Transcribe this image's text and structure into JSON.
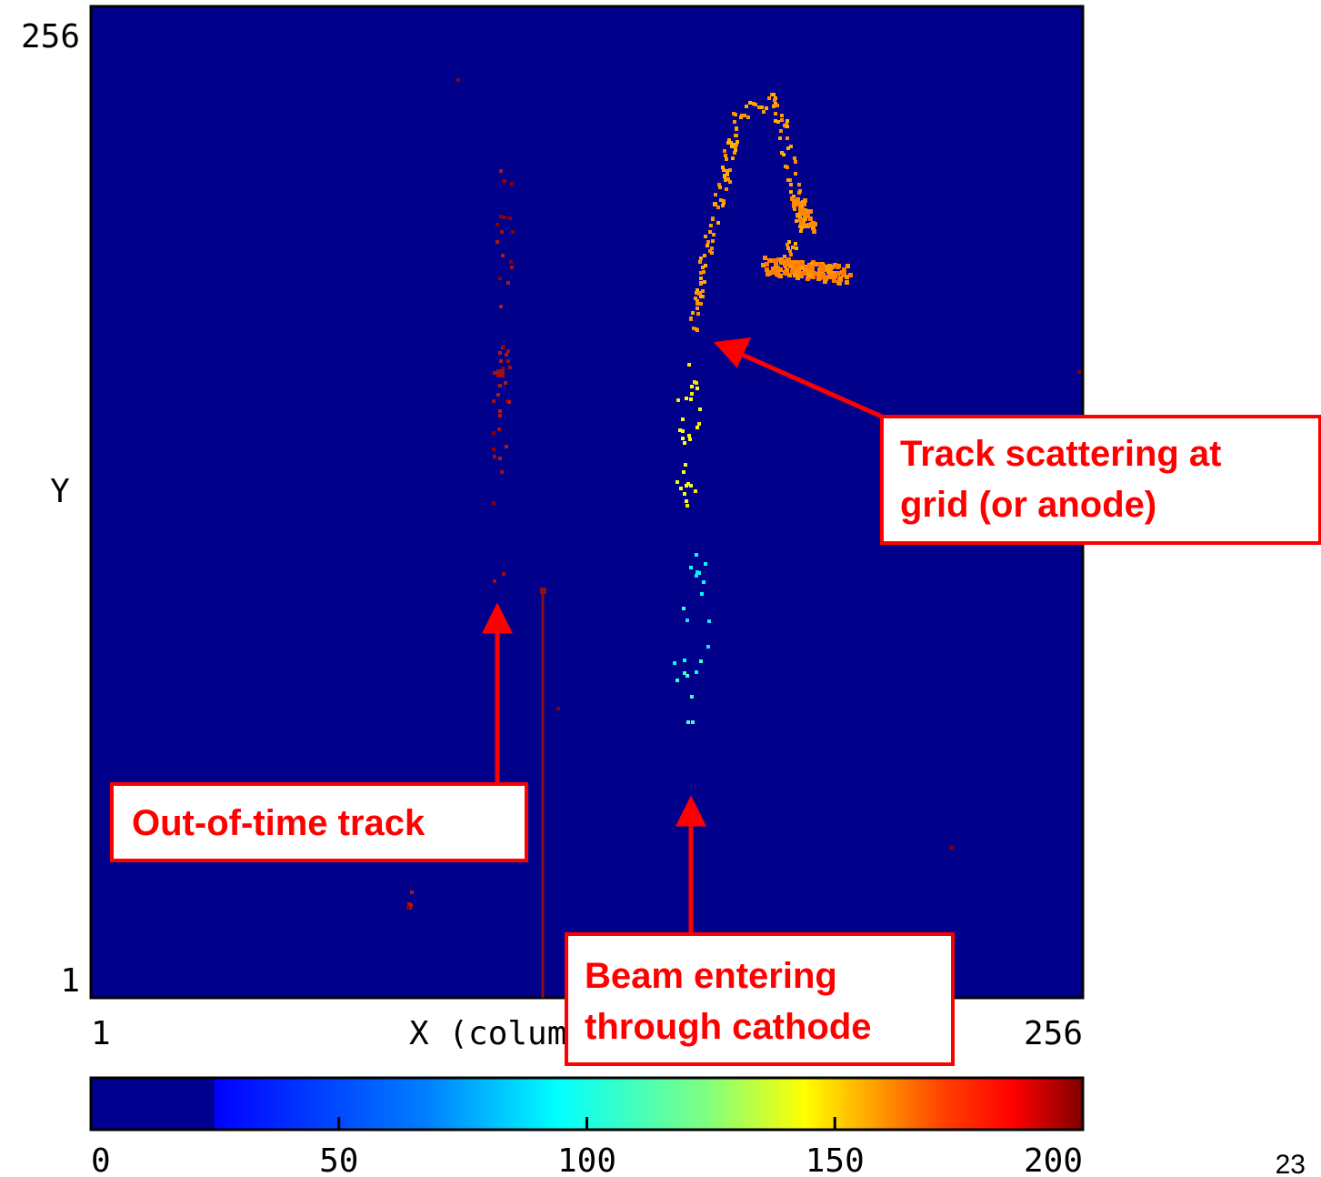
{
  "axes": {
    "y_top": "256",
    "y_bottom": "1",
    "y_label": "Y",
    "x_left": "1",
    "x_right": "256",
    "x_label": "X (column)"
  },
  "colorbar": {
    "lim": [
      0,
      200
    ],
    "ticks": [
      0,
      50,
      100,
      150,
      200
    ]
  },
  "annotations": {
    "scattering": [
      "Track scattering at",
      "grid (or anode)"
    ],
    "out_of_time": "Out-of-time track",
    "beam": [
      "Beam entering",
      "through cathode"
    ]
  },
  "page_number": "23"
}
